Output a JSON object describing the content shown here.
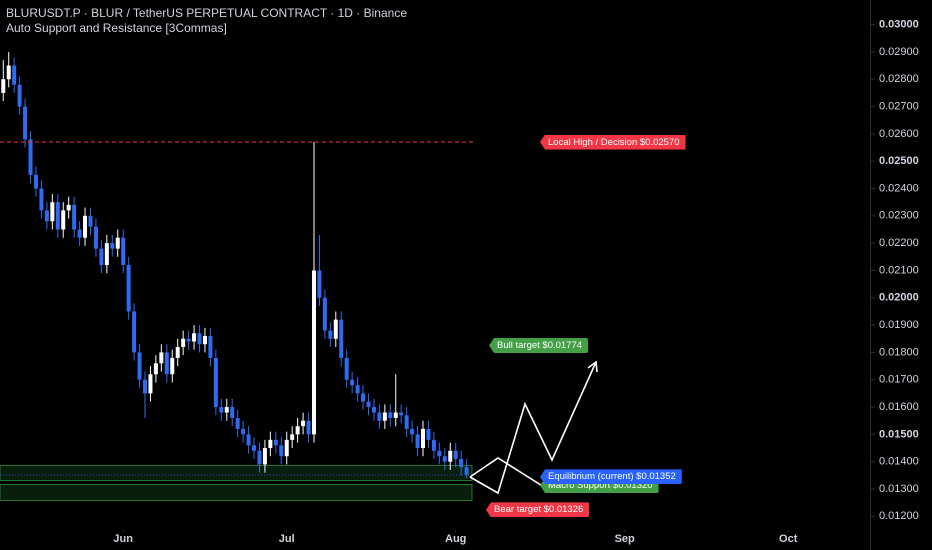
{
  "header": {
    "title": "BLURUSDT.P · BLUR / TetherUS PERPETUAL CONTRACT · 1D · Binance",
    "indicator": "Auto Support and Resistance [3Commas]"
  },
  "chart_data": {
    "type": "candlestick",
    "up_color": "#ffffff",
    "down_color": "#2f6bf2",
    "x": [
      -22,
      -21,
      -20,
      -19,
      -18,
      -17,
      -16,
      -15,
      -14,
      -13,
      -12,
      -11,
      -10,
      -9,
      -8,
      -7,
      -6,
      -5,
      -4,
      -3,
      -2,
      -1,
      0,
      1,
      2,
      3,
      4,
      5,
      6,
      7,
      8,
      9,
      10,
      11,
      12,
      13,
      14,
      15,
      16,
      17,
      18,
      19,
      20,
      21,
      22,
      23,
      24,
      25,
      26,
      27,
      28,
      29,
      30,
      31,
      32,
      33,
      34,
      35,
      36,
      37,
      38,
      39,
      40,
      41,
      42,
      43,
      44,
      45,
      46,
      47,
      48,
      49,
      50,
      51,
      52,
      53,
      54,
      55,
      56,
      57,
      58,
      59,
      60,
      61,
      62,
      63
    ],
    "open": [
      0.0275,
      0.028,
      0.0285,
      0.0278,
      0.027,
      0.0258,
      0.0245,
      0.024,
      0.0232,
      0.0228,
      0.0235,
      0.0225,
      0.0232,
      0.0234,
      0.0225,
      0.0222,
      0.023,
      0.0226,
      0.0218,
      0.0212,
      0.022,
      0.0218,
      0.0222,
      0.0212,
      0.0195,
      0.018,
      0.017,
      0.0165,
      0.0172,
      0.0176,
      0.018,
      0.0172,
      0.0178,
      0.0182,
      0.0185,
      0.0184,
      0.0187,
      0.0183,
      0.0186,
      0.0178,
      0.016,
      0.0158,
      0.016,
      0.0156,
      0.0152,
      0.015,
      0.0146,
      0.0144,
      0.0139,
      0.0145,
      0.0148,
      0.0146,
      0.0142,
      0.0148,
      0.015,
      0.0153,
      0.0155,
      0.015,
      0.021,
      0.02,
      0.0188,
      0.0185,
      0.0192,
      0.0178,
      0.017,
      0.0168,
      0.0165,
      0.0162,
      0.016,
      0.0158,
      0.0155,
      0.0158,
      0.0156,
      0.0158,
      0.0157,
      0.0152,
      0.015,
      0.0145,
      0.0152,
      0.0148,
      0.0144,
      0.0142,
      0.014,
      0.0144,
      0.0141,
      0.0138
    ],
    "high": [
      0.0287,
      0.029,
      0.0288,
      0.0281,
      0.0273,
      0.0261,
      0.0248,
      0.0243,
      0.0235,
      0.0238,
      0.0238,
      0.0235,
      0.0237,
      0.0237,
      0.0228,
      0.0233,
      0.0233,
      0.0229,
      0.0221,
      0.0223,
      0.0223,
      0.0225,
      0.0225,
      0.0215,
      0.0198,
      0.0183,
      0.0173,
      0.0175,
      0.0179,
      0.0183,
      0.0183,
      0.0181,
      0.0185,
      0.0188,
      0.0188,
      0.019,
      0.019,
      0.0189,
      0.0189,
      0.0181,
      0.0163,
      0.0163,
      0.0163,
      0.0159,
      0.0155,
      0.0153,
      0.0149,
      0.0147,
      0.0148,
      0.0151,
      0.0151,
      0.0149,
      0.0151,
      0.0153,
      0.0156,
      0.0158,
      0.0158,
      0.0257,
      0.0223,
      0.0203,
      0.0191,
      0.0195,
      0.0195,
      0.0181,
      0.0173,
      0.0171,
      0.0168,
      0.0165,
      0.0163,
      0.0161,
      0.0161,
      0.0161,
      0.0172,
      0.0161,
      0.016,
      0.0155,
      0.0153,
      0.0155,
      0.0155,
      0.0151,
      0.0147,
      0.0145,
      0.0147,
      0.0147,
      0.0144,
      0.0141
    ],
    "low": [
      0.0272,
      0.0277,
      0.0275,
      0.0267,
      0.0255,
      0.0242,
      0.0237,
      0.0229,
      0.0225,
      0.0225,
      0.0222,
      0.0222,
      0.0229,
      0.0222,
      0.0219,
      0.0219,
      0.0223,
      0.0215,
      0.0209,
      0.0209,
      0.0215,
      0.0215,
      0.0209,
      0.0192,
      0.0177,
      0.0167,
      0.0156,
      0.0162,
      0.0169,
      0.0173,
      0.0169,
      0.0169,
      0.0175,
      0.0179,
      0.0181,
      0.0181,
      0.018,
      0.018,
      0.0175,
      0.0157,
      0.0155,
      0.0155,
      0.0153,
      0.0149,
      0.0147,
      0.0143,
      0.0141,
      0.0136,
      0.0136,
      0.0142,
      0.0143,
      0.0139,
      0.0139,
      0.0145,
      0.0147,
      0.015,
      0.0147,
      0.0147,
      0.0197,
      0.0185,
      0.0182,
      0.0182,
      0.0175,
      0.0167,
      0.0165,
      0.0162,
      0.0159,
      0.0157,
      0.0155,
      0.0152,
      0.0152,
      0.0153,
      0.0153,
      0.0154,
      0.0149,
      0.0147,
      0.0142,
      0.0142,
      0.0145,
      0.0141,
      0.0139,
      0.0137,
      0.0137,
      0.0138,
      0.0135,
      0.0134
    ],
    "close": [
      0.028,
      0.0285,
      0.0278,
      0.027,
      0.0258,
      0.0245,
      0.024,
      0.0232,
      0.0228,
      0.0235,
      0.0225,
      0.0232,
      0.0234,
      0.0225,
      0.0222,
      0.023,
      0.0226,
      0.0218,
      0.0212,
      0.022,
      0.0218,
      0.0222,
      0.0212,
      0.0195,
      0.018,
      0.017,
      0.0165,
      0.0172,
      0.0176,
      0.018,
      0.0172,
      0.0178,
      0.0182,
      0.0185,
      0.0184,
      0.0187,
      0.0183,
      0.0186,
      0.0178,
      0.016,
      0.0158,
      0.016,
      0.0156,
      0.0152,
      0.015,
      0.0146,
      0.0144,
      0.0139,
      0.0145,
      0.0148,
      0.0146,
      0.0142,
      0.0148,
      0.015,
      0.0153,
      0.0155,
      0.015,
      0.021,
      0.02,
      0.0188,
      0.0185,
      0.0192,
      0.0178,
      0.017,
      0.0168,
      0.0165,
      0.0162,
      0.016,
      0.0158,
      0.0155,
      0.0158,
      0.0156,
      0.0158,
      0.0157,
      0.0152,
      0.015,
      0.0145,
      0.0152,
      0.0148,
      0.0144,
      0.0142,
      0.014,
      0.0144,
      0.0141,
      0.0138,
      0.01352
    ],
    "xlim": [
      -22.6,
      137
    ],
    "ylim": [
      0.0115,
      0.0309
    ],
    "xticks": [
      {
        "value": 0,
        "label": "Jun"
      },
      {
        "value": 30,
        "label": "Jul"
      },
      {
        "value": 61,
        "label": "Aug"
      },
      {
        "value": 92,
        "label": "Sep"
      },
      {
        "value": 122,
        "label": "Oct"
      }
    ],
    "yticks": [
      {
        "value": 0.012,
        "label": "0.01200"
      },
      {
        "value": 0.013,
        "label": "0.01300"
      },
      {
        "value": 0.014,
        "label": "0.01400"
      },
      {
        "value": 0.015,
        "label": "0.01500"
      },
      {
        "value": 0.016,
        "label": "0.01600"
      },
      {
        "value": 0.017,
        "label": "0.01700"
      },
      {
        "value": 0.018,
        "label": "0.01800"
      },
      {
        "value": 0.019,
        "label": "0.01900"
      },
      {
        "value": 0.02,
        "label": "0.02000"
      },
      {
        "value": 0.021,
        "label": "0.02100"
      },
      {
        "value": 0.022,
        "label": "0.02200"
      },
      {
        "value": 0.023,
        "label": "0.02300"
      },
      {
        "value": 0.024,
        "label": "0.02400"
      },
      {
        "value": 0.025,
        "label": "0.02500"
      },
      {
        "value": 0.026,
        "label": "0.02600"
      },
      {
        "value": 0.027,
        "label": "0.02700"
      },
      {
        "value": 0.028,
        "label": "0.02800"
      },
      {
        "value": 0.029,
        "label": "0.02900"
      },
      {
        "value": 0.03,
        "label": "0.03000"
      }
    ],
    "zones": [
      {
        "low": 0.01331,
        "high": 0.01386
      },
      {
        "low": 0.01258,
        "high": 0.01317
      }
    ],
    "zone_color": "#1f6b2a",
    "levels": [
      {
        "text": "Local High / Decision $0.02570",
        "price": 0.0257,
        "color": "#f23645",
        "line_style": "dashed"
      },
      {
        "text": "Bull target $0.01774",
        "price": 0.01774,
        "color": "#43a047"
      },
      {
        "text": "Macro Support $0.01320",
        "price": 0.0132,
        "color": "#43a047"
      },
      {
        "text": "Equilibrium (current) $0.01352",
        "price": 0.01352,
        "color": "#2962ff",
        "line_style": "dotted"
      },
      {
        "text": "Bear target $0.01326",
        "price": 0.01326,
        "color": "#f23645"
      }
    ]
  }
}
